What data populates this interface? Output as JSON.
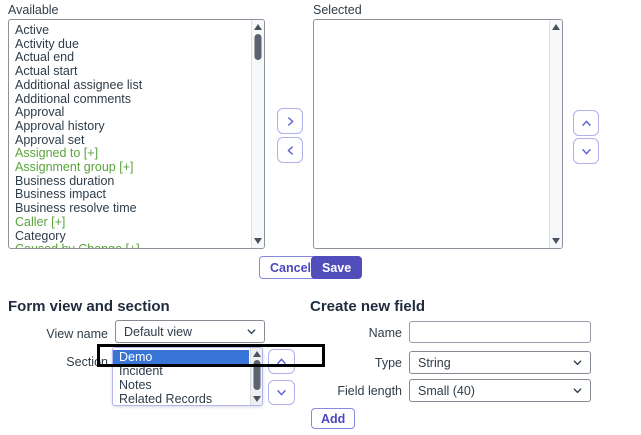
{
  "available": {
    "label": "Available",
    "items": [
      {
        "label": "Active",
        "reference": false
      },
      {
        "label": "Activity due",
        "reference": false
      },
      {
        "label": "Actual end",
        "reference": false
      },
      {
        "label": "Actual start",
        "reference": false
      },
      {
        "label": "Additional assignee list",
        "reference": false
      },
      {
        "label": "Additional comments",
        "reference": false
      },
      {
        "label": "Approval",
        "reference": false
      },
      {
        "label": "Approval history",
        "reference": false
      },
      {
        "label": "Approval set",
        "reference": false
      },
      {
        "label": "Assigned to [+]",
        "reference": true
      },
      {
        "label": "Assignment group [+]",
        "reference": true
      },
      {
        "label": "Business duration",
        "reference": false
      },
      {
        "label": "Business impact",
        "reference": false
      },
      {
        "label": "Business resolve time",
        "reference": false
      },
      {
        "label": "Caller [+]",
        "reference": true
      },
      {
        "label": "Category",
        "reference": false
      },
      {
        "label": "Caused by Change [+]",
        "reference": true
      }
    ]
  },
  "selected": {
    "label": "Selected",
    "items": []
  },
  "actions": {
    "cancel_label": "Cancel",
    "save_label": "Save"
  },
  "form_view_section": {
    "heading": "Form view and section",
    "view_name_label": "View name",
    "view_name_value": "Default view",
    "section_label": "Section",
    "section_options": [
      "Demo",
      "Incident",
      "Notes",
      "Related Records"
    ],
    "section_selected_option": "Demo"
  },
  "create_new_field": {
    "heading": "Create new field",
    "name_label": "Name",
    "name_value": "",
    "type_label": "Type",
    "type_value": "String",
    "field_length_label": "Field length",
    "field_length_value": "Small (40)",
    "add_label": "Add"
  },
  "icons": {
    "chevron_right": "›",
    "chevron_left": "‹",
    "chevron_up": "ˆ",
    "chevron_down": "ˇ",
    "scroll_up_arrow": "▲",
    "scroll_down_arrow": "▼"
  },
  "colors": {
    "accent_purple": "#4a48c0",
    "save_button_bg": "#514ebc",
    "reference_field_green": "#59a43b",
    "selected_option_blue": "#3875d7",
    "annotation_box_black": "#000000"
  }
}
